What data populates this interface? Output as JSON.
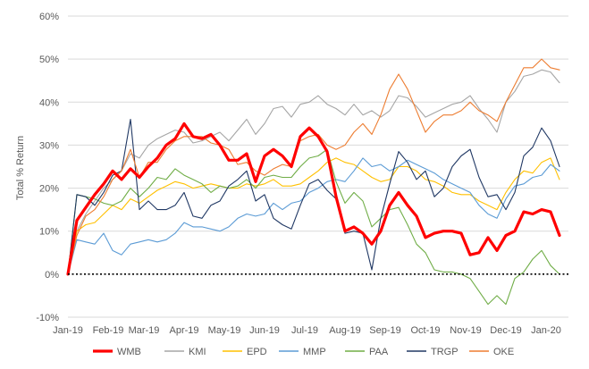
{
  "chart_data": {
    "type": "line",
    "title": "",
    "xlabel": "",
    "ylabel": "Total % Return",
    "ylim": [
      -10,
      60
    ],
    "y_ticks": [
      -10,
      0,
      10,
      20,
      30,
      40,
      50,
      60
    ],
    "y_tick_labels": [
      "-10%",
      "0%",
      "10%",
      "20%",
      "30%",
      "40%",
      "50%",
      "60%"
    ],
    "x_tick_labels": [
      "Jan-19",
      "Feb-19",
      "Mar-19",
      "Apr-19",
      "May-19",
      "Jun-19",
      "Jul-19",
      "Aug-19",
      "Sep-19",
      "Oct-19",
      "Nov-19",
      "Dec-19",
      "Jan-20"
    ],
    "x_tick_positions_weeks": [
      0,
      4.5,
      8.5,
      13,
      17.5,
      22,
      26.5,
      31,
      35.5,
      40,
      44.5,
      49,
      53.5
    ],
    "x_range_weeks": [
      0,
      56
    ],
    "zero_line": "dotted",
    "grid": "horizontal",
    "legend": "bottom",
    "colors": {
      "WMB": "#ff0000",
      "KMI": "#a5a5a5",
      "EPD": "#ffc000",
      "MMP": "#5b9bd5",
      "PAA": "#70ad47",
      "TRGP": "#203864",
      "OKE": "#ed7d31"
    },
    "series": [
      {
        "name": "WMB",
        "color": "#ff0000",
        "width": 3.2,
        "values": [
          0,
          12.5,
          15.5,
          18.5,
          21,
          24,
          22,
          24.5,
          22.5,
          25,
          27,
          30,
          31.5,
          35,
          32,
          31.5,
          32.5,
          30,
          26.5,
          26.5,
          28,
          21.5,
          27.5,
          29,
          27.5,
          25,
          32,
          34,
          32,
          28.5,
          18,
          10,
          11,
          9.5,
          7,
          10,
          16,
          19,
          16,
          13.5,
          8.5,
          9.5,
          10,
          10,
          9.5,
          4.5,
          5,
          8.5,
          5.5,
          9,
          10,
          14.5,
          14,
          15,
          14.5,
          9
        ]
      },
      {
        "name": "KMI",
        "color": "#a5a5a5",
        "width": 1.1,
        "values": [
          0,
          10,
          14,
          17,
          20,
          22,
          24,
          28,
          27,
          30,
          31.5,
          32.5,
          33.5,
          33,
          30.5,
          31,
          32,
          33,
          31,
          33.5,
          36,
          32.5,
          35,
          38.5,
          39,
          36.5,
          39.5,
          40,
          41.5,
          39.5,
          38.5,
          37,
          39.5,
          37,
          38,
          36.5,
          38,
          41.5,
          41,
          39,
          36.5,
          37.5,
          38.5,
          39.5,
          40,
          41.5,
          38.5,
          36,
          33,
          40,
          42.5,
          46,
          46.5,
          47.5,
          47,
          44.5
        ]
      },
      {
        "name": "EPD",
        "color": "#ffc000",
        "width": 1.1,
        "values": [
          0,
          10,
          11.5,
          12,
          14,
          16,
          15,
          17.5,
          16.5,
          18,
          19.5,
          20.5,
          21.5,
          21,
          20,
          20.5,
          21,
          20.5,
          20,
          20,
          21,
          20.5,
          21,
          22,
          20.5,
          20.5,
          21,
          22.5,
          24,
          26,
          27,
          26,
          25.5,
          24,
          22.5,
          21.5,
          22,
          25,
          25,
          24,
          22,
          21.5,
          20.5,
          19,
          18.5,
          18.5,
          17,
          16,
          15,
          19,
          22,
          24,
          23.5,
          26,
          27,
          22
        ]
      },
      {
        "name": "MMP",
        "color": "#5b9bd5",
        "width": 1.1,
        "values": [
          0,
          8,
          7.5,
          7,
          9.5,
          5.5,
          4.5,
          7,
          7.5,
          8,
          7.5,
          8,
          9.5,
          12,
          11,
          11,
          10.5,
          10,
          11,
          13,
          14,
          13.5,
          14,
          16.5,
          15,
          16.5,
          17,
          19,
          20,
          21.5,
          22,
          21.5,
          24,
          27,
          25,
          25.5,
          24,
          25,
          26.5,
          25.5,
          24.5,
          23.5,
          22,
          21,
          20,
          19,
          16,
          14,
          13,
          17.5,
          20.5,
          21,
          22.5,
          23,
          25.5,
          24
        ]
      },
      {
        "name": "PAA",
        "color": "#70ad47",
        "width": 1.1,
        "values": [
          0,
          18.5,
          18,
          17.5,
          16.5,
          16,
          17,
          20,
          18,
          20,
          22.5,
          22,
          24.5,
          23,
          22,
          21,
          19,
          20.5,
          20,
          20.5,
          22,
          20,
          22.5,
          23,
          22.5,
          22.5,
          25,
          27,
          27.5,
          29,
          21.5,
          16.5,
          19,
          17,
          11,
          13,
          15,
          15.5,
          11.5,
          7,
          5,
          1,
          0.5,
          0.5,
          0,
          -1,
          -4,
          -7,
          -5,
          -7,
          -1,
          0.5,
          3.5,
          5.5,
          2,
          0
        ]
      },
      {
        "name": "TRGP",
        "color": "#203864",
        "width": 1.1,
        "values": [
          0,
          18.5,
          18,
          16,
          19,
          23,
          24,
          36,
          15,
          17,
          15,
          15,
          16,
          19,
          13.5,
          13,
          16,
          17,
          20.5,
          22,
          24,
          17,
          18.5,
          13,
          11.5,
          10.5,
          16,
          21,
          22,
          19.5,
          17.5,
          9.5,
          10,
          9.5,
          1,
          13,
          21,
          28.5,
          26,
          22,
          24,
          18,
          20,
          25,
          27.5,
          29,
          22.5,
          18,
          18.5,
          15,
          19,
          27.5,
          29.5,
          34,
          31,
          25
        ]
      },
      {
        "name": "OKE",
        "color": "#ed7d31",
        "width": 1.1,
        "values": [
          0,
          9,
          13.5,
          15,
          18,
          22,
          24,
          29,
          22.5,
          26,
          26,
          29,
          31,
          32,
          32,
          32,
          30.5,
          30,
          29,
          25.5,
          26,
          24,
          23,
          24.5,
          25.5,
          25,
          31,
          32,
          32.5,
          30,
          29,
          30,
          33,
          35,
          32.5,
          37,
          43,
          46.5,
          43,
          38,
          33,
          35.5,
          37,
          37,
          38,
          40,
          38,
          37,
          35.5,
          40,
          44,
          48,
          48,
          50,
          48,
          47.5
        ]
      }
    ]
  }
}
